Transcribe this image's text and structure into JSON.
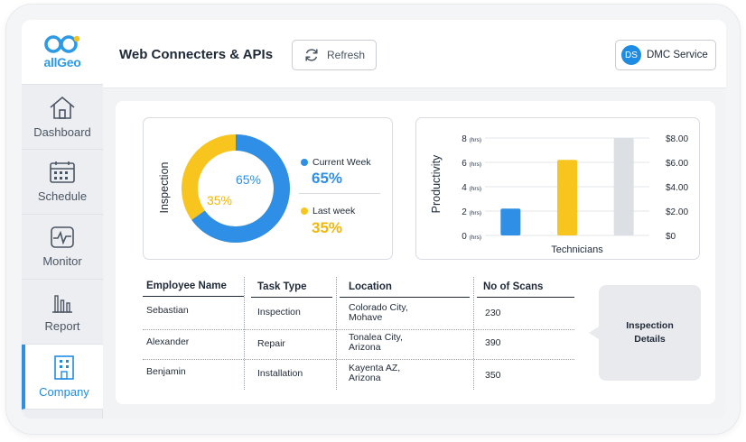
{
  "app": {
    "logo_text": "allGeo",
    "page_title": "Web Connecters & APIs",
    "refresh_label": "Refresh",
    "service": {
      "avatar": "DS",
      "label": "DMC Service"
    }
  },
  "sidebar": {
    "items": [
      {
        "label": "Dashboard",
        "icon": "home-icon"
      },
      {
        "label": "Schedule",
        "icon": "calendar-icon"
      },
      {
        "label": "Monitor",
        "icon": "pulse-monitor-icon"
      },
      {
        "label": "Report",
        "icon": "bar-report-icon"
      },
      {
        "label": "Company",
        "icon": "building-icon",
        "active": true
      }
    ]
  },
  "inspection": {
    "axis_label": "Inspection",
    "current": {
      "label": "Current Week",
      "value": "65%",
      "color": "#2f8fe6"
    },
    "last": {
      "label": "Last week",
      "value": "35%",
      "color": "#f7c51e"
    }
  },
  "chart_data": {
    "type": "bar",
    "ylabel": "Productivity",
    "xlabel": "Technicians",
    "ylim": [
      0,
      8
    ],
    "y_ticks": [
      "0 (hrs)",
      "2 (hrs)",
      "4 (hrs)",
      "6 (hrs)",
      "8 (hrs)"
    ],
    "y2_ticks": [
      "$0",
      "$2.00",
      "$4.00",
      "$6.00",
      "$8.00"
    ],
    "values": [
      2.2,
      6.2,
      8.0
    ],
    "colors": [
      "#2f8fe6",
      "#f7c51e",
      "#dcdfe3"
    ],
    "grid": true
  },
  "table": {
    "headers": [
      "Employee Name",
      "Task Type",
      "Location",
      "No of Scans"
    ],
    "rows": [
      {
        "name": "Sebastian",
        "task": "Inspection",
        "loc1": "Colorado City,",
        "loc2": "Mohave",
        "scans": "230"
      },
      {
        "name": "Alexander",
        "task": "Repair",
        "loc1": "Tonalea City,",
        "loc2": "Arizona",
        "scans": "390"
      },
      {
        "name": "Benjamin",
        "task": "Installation",
        "loc1": "Kayenta AZ,",
        "loc2": "Arizona",
        "scans": "350"
      }
    ]
  },
  "details": {
    "line1": "Inspection",
    "line2": "Details"
  }
}
